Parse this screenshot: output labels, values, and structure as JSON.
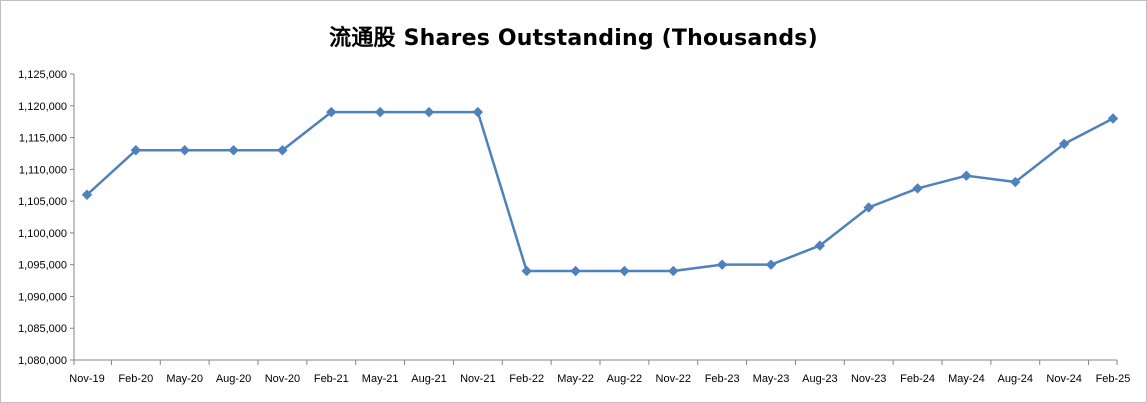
{
  "chart_data": {
    "type": "line",
    "title": "流通股 Shares Outstanding (Thousands)",
    "xlabel": "",
    "ylabel": "",
    "ylim": [
      1080000,
      1125000
    ],
    "ytick_step": 5000,
    "ytick_labels": [
      "1,080,000",
      "1,085,000",
      "1,090,000",
      "1,095,000",
      "1,100,000",
      "1,105,000",
      "1,110,000",
      "1,115,000",
      "1,120,000",
      "1,125,000"
    ],
    "categories": [
      "Nov-19",
      "Feb-20",
      "May-20",
      "Aug-20",
      "Nov-20",
      "Feb-21",
      "May-21",
      "Aug-21",
      "Nov-21",
      "Feb-22",
      "May-22",
      "Aug-22",
      "Nov-22",
      "Feb-23",
      "May-23",
      "Aug-23",
      "Nov-23",
      "Feb-24",
      "May-24",
      "Aug-24",
      "Nov-24",
      "Feb-25"
    ],
    "series": [
      {
        "marker": "diamond",
        "color": "#4f81bd",
        "values": [
          1106000,
          1113000,
          1113000,
          1113000,
          1113000,
          1119000,
          1119000,
          1119000,
          1119000,
          1094000,
          1094000,
          1094000,
          1094000,
          1095000,
          1095000,
          1098000,
          1104000,
          1107000,
          1109000,
          1108000,
          1114000,
          1118000
        ]
      }
    ],
    "grid": false,
    "legend": "none"
  }
}
